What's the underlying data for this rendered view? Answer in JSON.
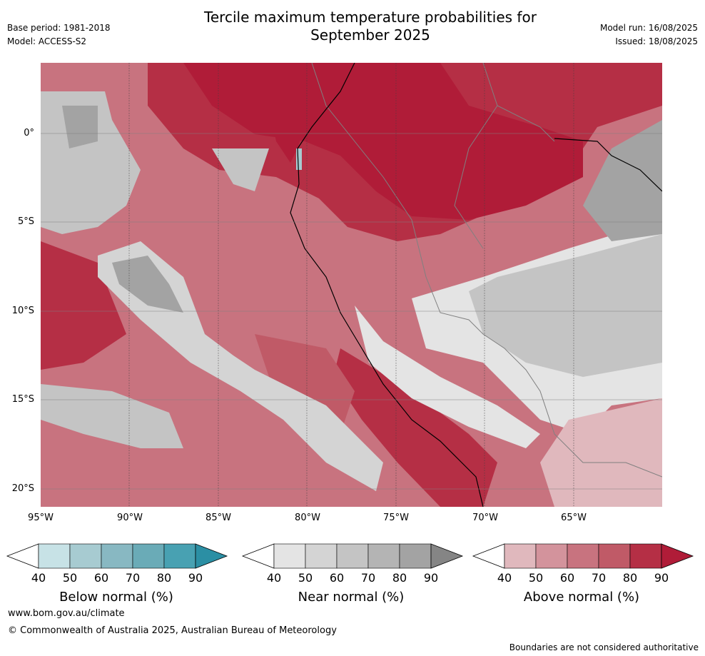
{
  "title_line1": "Tercile maximum temperature probabilities for",
  "title_line2": "September 2025",
  "base_period": "Base period: 1981-2018",
  "model": "Model: ACCESS-S2",
  "model_run": "Model run: 16/08/2025",
  "issued": "Issued: 18/08/2025",
  "lat_labels": [
    "0°",
    "5°S",
    "10°S",
    "15°S",
    "20°S"
  ],
  "lon_labels": [
    "95°W",
    "90°W",
    "85°W",
    "80°W",
    "75°W",
    "70°W",
    "65°W"
  ],
  "colorbars": [
    {
      "title": "Below normal (%)",
      "ticks": [
        "40",
        "50",
        "60",
        "70",
        "80",
        "90"
      ],
      "colors": [
        "#c7e2e6",
        "#a7cbd1",
        "#88b8c2",
        "#6aabb7",
        "#48a1b2",
        "#2b8fa4"
      ]
    },
    {
      "title": "Near normal (%)",
      "ticks": [
        "40",
        "50",
        "60",
        "70",
        "80",
        "90"
      ],
      "colors": [
        "#e4e4e4",
        "#d4d4d4",
        "#c4c4c4",
        "#b4b4b4",
        "#a3a3a3",
        "#858585"
      ]
    },
    {
      "title": "Above normal (%)",
      "ticks": [
        "40",
        "50",
        "60",
        "70",
        "80",
        "90"
      ],
      "colors": [
        "#e0b8bd",
        "#d3939c",
        "#c8737f",
        "#c05a67",
        "#b52f45",
        "#b01c38"
      ]
    }
  ],
  "map_colors": {
    "above90": "#b01c38",
    "above80": "#b52f45",
    "above70": "#c05a67",
    "above60": "#c8737f",
    "above50": "#d3939c",
    "above40": "#e0b8bd",
    "near40": "#e4e4e4",
    "near50": "#d4d4d4",
    "near60": "#c4c4c4",
    "near70": "#b4b4b4",
    "near80": "#a3a3a3",
    "below50": "#a7cbd1"
  },
  "footer_url": "www.bom.gov.au/climate",
  "footer_copyright": "© Commonwealth of Australia 2025, Australian Bureau of Meteorology",
  "footer_note": "Boundaries are not considered authoritative"
}
